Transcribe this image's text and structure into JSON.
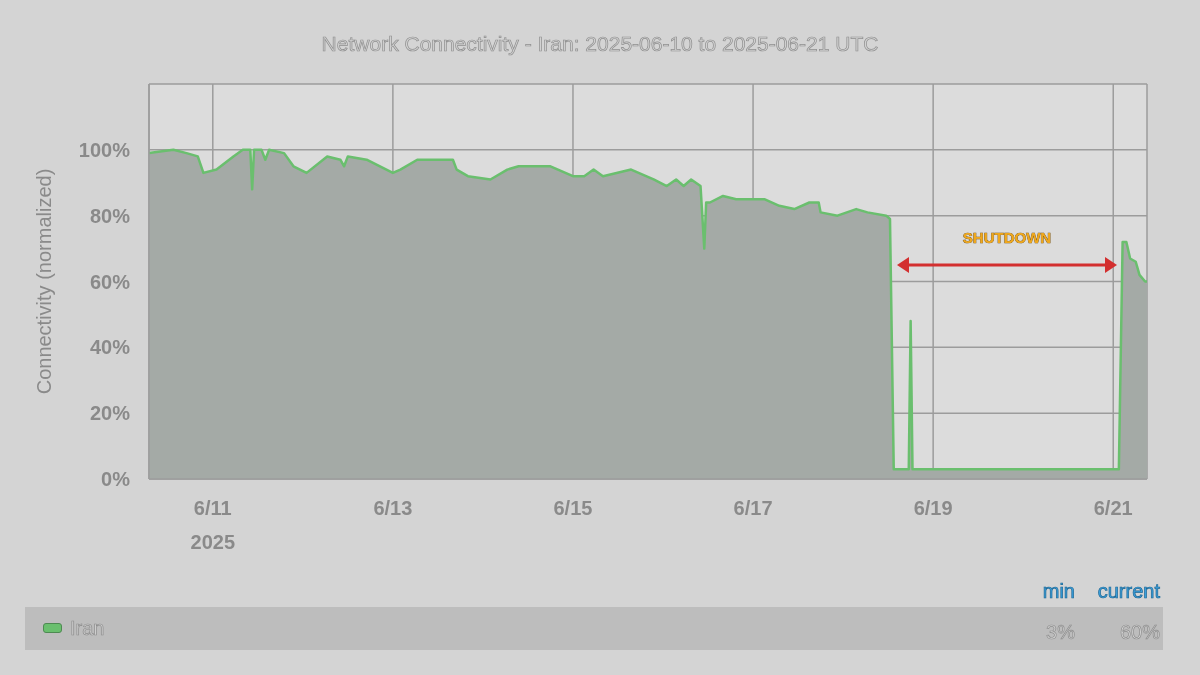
{
  "chart_data": {
    "type": "area",
    "title": "Network Connectivity - Iran: 2025-06-10 to 2025-06-21 UTC",
    "ylabel": "Connectivity (normalized)",
    "x": [
      "2025-06-10T07:00",
      "2025-06-10T13:30",
      "2025-06-10T17:00",
      "2025-06-10T20:00",
      "2025-06-10T21:30",
      "2025-06-11T01:00",
      "2025-06-11T05:30",
      "2025-06-11T08:00",
      "2025-06-11T10:00",
      "2025-06-11T10:30",
      "2025-06-11T11:00",
      "2025-06-11T13:00",
      "2025-06-11T14:00",
      "2025-06-11T15:00",
      "2025-06-11T19:00",
      "2025-06-11T21:30",
      "2025-06-12T01:00",
      "2025-06-12T06:30",
      "2025-06-12T10:00",
      "2025-06-12T11:00",
      "2025-06-12T12:00",
      "2025-06-12T17:00",
      "2025-06-13T00:00",
      "2025-06-13T02:00",
      "2025-06-13T06:30",
      "2025-06-13T09:00",
      "2025-06-13T16:00",
      "2025-06-13T17:00",
      "2025-06-13T20:00",
      "2025-06-14T02:00",
      "2025-06-14T06:30",
      "2025-06-14T09:30",
      "2025-06-14T18:00",
      "2025-06-15T00:00",
      "2025-06-15T03:00",
      "2025-06-15T05:30",
      "2025-06-15T08:00",
      "2025-06-15T15:30",
      "2025-06-15T21:30",
      "2025-06-16T01:00",
      "2025-06-16T03:30",
      "2025-06-16T05:30",
      "2025-06-16T07:30",
      "2025-06-16T10:00",
      "2025-06-16T11:00",
      "2025-06-16T11:30",
      "2025-06-16T12:30",
      "2025-06-16T16:00",
      "2025-06-16T19:30",
      "2025-06-16T23:00",
      "2025-06-17T03:00",
      "2025-06-17T07:00",
      "2025-06-17T11:00",
      "2025-06-17T15:00",
      "2025-06-17T17:30",
      "2025-06-17T18:00",
      "2025-06-17T22:30",
      "2025-06-18T03:30",
      "2025-06-18T06:30",
      "2025-06-18T11:30",
      "2025-06-18T12:30",
      "2025-06-18T13:30",
      "2025-06-18T17:30",
      "2025-06-18T18:00",
      "2025-06-18T18:30",
      "2025-06-18T21:30",
      "2025-06-19T12:00",
      "2025-06-20T12:00",
      "2025-06-21T01:30",
      "2025-06-21T02:30",
      "2025-06-21T03:30",
      "2025-06-21T04:30",
      "2025-06-21T06:00",
      "2025-06-21T07:00",
      "2025-06-21T08:30",
      "2025-06-21T09:00"
    ],
    "series": [
      {
        "name": "Iran",
        "color": "#6abf6e",
        "values": [
          99,
          100,
          99,
          98,
          93,
          94,
          98,
          100,
          100,
          88,
          100,
          100,
          97,
          100,
          99,
          95,
          93,
          98,
          97,
          95,
          98,
          97,
          93,
          94,
          97,
          97,
          97,
          94,
          92,
          91,
          94,
          95,
          95,
          92,
          92,
          94,
          92,
          94,
          91,
          89,
          91,
          89,
          91,
          89,
          70,
          84,
          84,
          86,
          85,
          85,
          85,
          83,
          82,
          84,
          84,
          81,
          80,
          82,
          81,
          80,
          79,
          3,
          3,
          48,
          3,
          3,
          3,
          3,
          3,
          72,
          72,
          67,
          66,
          62,
          60,
          60
        ]
      }
    ],
    "xlim": [
      "2025-06-10T07:00",
      "2025-06-21T09:00"
    ],
    "xticks": [
      {
        "value": "2025-06-11",
        "label": "6/11\n2025"
      },
      {
        "value": "2025-06-13",
        "label": "6/13"
      },
      {
        "value": "2025-06-15",
        "label": "6/15"
      },
      {
        "value": "2025-06-17",
        "label": "6/17"
      },
      {
        "value": "2025-06-19",
        "label": "6/19"
      },
      {
        "value": "2025-06-21",
        "label": "6/21"
      }
    ],
    "ylim": [
      0,
      120
    ],
    "yticks": [
      {
        "value": 0,
        "label": "0%"
      },
      {
        "value": 20,
        "label": "20%"
      },
      {
        "value": 40,
        "label": "40%"
      },
      {
        "value": 60,
        "label": "60%"
      },
      {
        "value": 80,
        "label": "80%"
      },
      {
        "value": 100,
        "label": "100%"
      },
      {
        "value": 120,
        "label": null
      }
    ],
    "grid": true,
    "legend": "bottom",
    "annotations": [
      "SHUTDOWN",
      "min",
      "current",
      "3%",
      "60%"
    ]
  }
}
